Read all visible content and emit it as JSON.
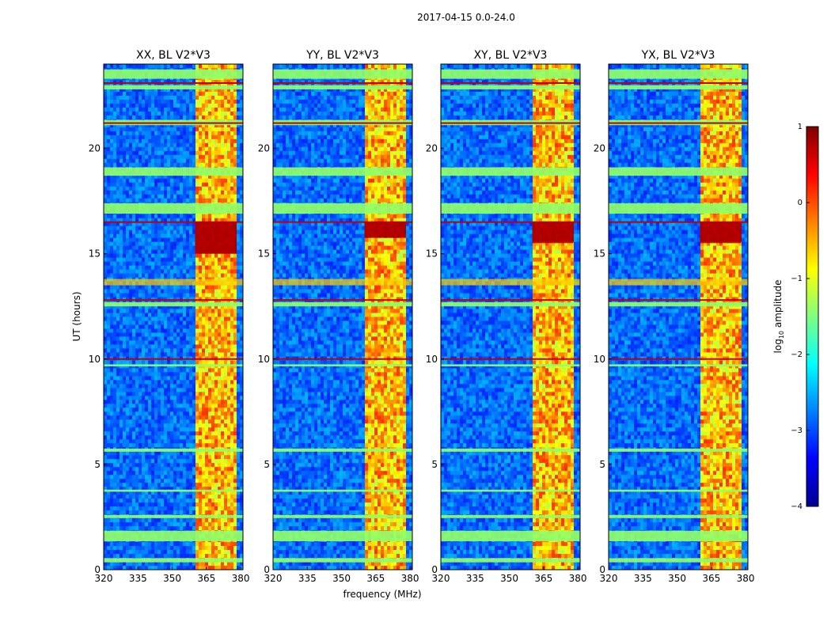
{
  "suptitle": "2017-04-15 0.0-24.0",
  "xlabel": "frequency (MHz)",
  "ylabel": "UT (hours)",
  "colorbar": {
    "label_prefix": "log",
    "label_sub": "10",
    "label_suffix": " amplitude",
    "range": [
      -4,
      1
    ],
    "ticks": [
      "1",
      "0",
      "−1",
      "−2",
      "−3",
      "−4"
    ],
    "tick_values": [
      1,
      0,
      -1,
      -2,
      -3,
      -4
    ],
    "colors": [
      "#7f0000",
      "#ff0000",
      "#ff8000",
      "#ffff00",
      "#80ff80",
      "#00ffff",
      "#0080ff",
      "#0000ff",
      "#00008f"
    ]
  },
  "chart_data": [
    {
      "type": "heatmap",
      "title": "XX, BL V2*V3",
      "xlim": [
        320,
        381
      ],
      "ylim": [
        0,
        24
      ],
      "xticks": [
        320,
        335,
        350,
        365,
        380
      ],
      "yticks": [
        0,
        5,
        10,
        15,
        20
      ],
      "peak_band_hours": [
        15.0,
        16.5
      ],
      "rfi_band_mhz": [
        360,
        378
      ]
    },
    {
      "type": "heatmap",
      "title": "YY, BL V2*V3",
      "xlim": [
        320,
        381
      ],
      "ylim": [
        0,
        24
      ],
      "xticks": [
        320,
        335,
        350,
        365,
        380
      ],
      "yticks": [
        0,
        5,
        10,
        15,
        20
      ],
      "peak_band_hours": [
        15.8,
        16.5
      ],
      "rfi_band_mhz": [
        360,
        378
      ]
    },
    {
      "type": "heatmap",
      "title": "XY, BL V2*V3",
      "xlim": [
        320,
        381
      ],
      "ylim": [
        0,
        24
      ],
      "xticks": [
        320,
        335,
        350,
        365,
        380
      ],
      "yticks": [
        0,
        5,
        10,
        15,
        20
      ],
      "peak_band_hours": [
        15.5,
        16.5
      ],
      "rfi_band_mhz": [
        360,
        378
      ]
    },
    {
      "type": "heatmap",
      "title": "YX, BL V2*V3",
      "xlim": [
        320,
        381
      ],
      "ylim": [
        0,
        24
      ],
      "xticks": [
        320,
        335,
        350,
        365,
        380
      ],
      "yticks": [
        0,
        5,
        10,
        15,
        20
      ],
      "peak_band_hours": [
        15.5,
        16.5
      ],
      "rfi_band_mhz": [
        360,
        378
      ]
    }
  ]
}
